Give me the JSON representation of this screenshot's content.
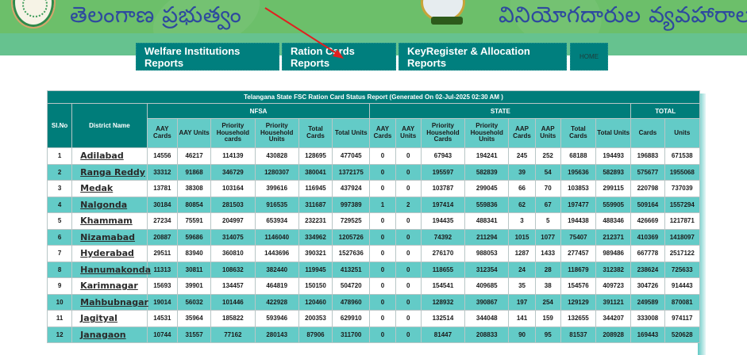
{
  "header": {
    "title_left": "తెలంగాణ ప్రభుత్వం",
    "title_right": "వినియోగదారుల వ్యవహారాలు",
    "logo_left": "telangana-emblem",
    "logo_right": "civil-supplies-emblem"
  },
  "nav": {
    "items": [
      {
        "label": "Welfare Institutions Reports"
      },
      {
        "label": "Ration Cards Reports"
      },
      {
        "label": "KeyRegister & Allocation Reports"
      },
      {
        "label": "HOME"
      }
    ]
  },
  "annotation": {
    "arrow_color": "#e02020"
  },
  "table": {
    "title": "Telangana State FSC Ration Card Status Report (Generated On 02-Jul-2025 02:30 AM )",
    "headers": {
      "slno": "Sl.No",
      "district": "District Name",
      "nfsa": "NFSA",
      "state": "STATE",
      "total": "TOTAL",
      "nfsa_cols": [
        "AAY Cards",
        "AAY Units",
        "Priority Household cards",
        "Priority Household Units",
        "Total Cards",
        "Total Units"
      ],
      "state_cols": [
        "AAY Cards",
        "AAY Units",
        "Priority Household Cards",
        "Priority Household Units",
        "AAP Cards",
        "AAP Units",
        "Total Cards",
        "Total Units"
      ],
      "total_cols": [
        "Cards",
        "Units"
      ]
    },
    "rows": [
      {
        "sl": "1",
        "district": "Adilabad",
        "v": [
          "14556",
          "46217",
          "114139",
          "430828",
          "128695",
          "477045",
          "0",
          "0",
          "67943",
          "194241",
          "245",
          "252",
          "68188",
          "194493",
          "196883",
          "671538"
        ]
      },
      {
        "sl": "2",
        "district": "Ranga Reddy",
        "v": [
          "33312",
          "91868",
          "346729",
          "1280307",
          "380041",
          "1372175",
          "0",
          "0",
          "195597",
          "582839",
          "39",
          "54",
          "195636",
          "582893",
          "575677",
          "1955068"
        ]
      },
      {
        "sl": "3",
        "district": "Medak",
        "v": [
          "13781",
          "38308",
          "103164",
          "399616",
          "116945",
          "437924",
          "0",
          "0",
          "103787",
          "299045",
          "66",
          "70",
          "103853",
          "299115",
          "220798",
          "737039"
        ]
      },
      {
        "sl": "4",
        "district": "Nalgonda",
        "v": [
          "30184",
          "80854",
          "281503",
          "916535",
          "311687",
          "997389",
          "1",
          "2",
          "197414",
          "559836",
          "62",
          "67",
          "197477",
          "559905",
          "509164",
          "1557294"
        ]
      },
      {
        "sl": "5",
        "district": "Khammam",
        "v": [
          "27234",
          "75591",
          "204997",
          "653934",
          "232231",
          "729525",
          "0",
          "0",
          "194435",
          "488341",
          "3",
          "5",
          "194438",
          "488346",
          "426669",
          "1217871"
        ]
      },
      {
        "sl": "6",
        "district": "Nizamabad",
        "v": [
          "20887",
          "59686",
          "314075",
          "1146040",
          "334962",
          "1205726",
          "0",
          "0",
          "74392",
          "211294",
          "1015",
          "1077",
          "75407",
          "212371",
          "410369",
          "1418097"
        ]
      },
      {
        "sl": "7",
        "district": "Hyderabad",
        "v": [
          "29511",
          "83940",
          "360810",
          "1443696",
          "390321",
          "1527636",
          "0",
          "0",
          "276170",
          "988053",
          "1287",
          "1433",
          "277457",
          "989486",
          "667778",
          "2517122"
        ]
      },
      {
        "sl": "8",
        "district": "Hanumakonda",
        "v": [
          "11313",
          "30811",
          "108632",
          "382440",
          "119945",
          "413251",
          "0",
          "0",
          "118655",
          "312354",
          "24",
          "28",
          "118679",
          "312382",
          "238624",
          "725633"
        ]
      },
      {
        "sl": "9",
        "district": "Karimnagar",
        "v": [
          "15693",
          "39901",
          "134457",
          "464819",
          "150150",
          "504720",
          "0",
          "0",
          "154541",
          "409685",
          "35",
          "38",
          "154576",
          "409723",
          "304726",
          "914443"
        ]
      },
      {
        "sl": "10",
        "district": "Mahbubnagar",
        "v": [
          "19014",
          "56032",
          "101446",
          "422928",
          "120460",
          "478960",
          "0",
          "0",
          "128932",
          "390867",
          "197",
          "254",
          "129129",
          "391121",
          "249589",
          "870081"
        ]
      },
      {
        "sl": "11",
        "district": "Jagityal",
        "v": [
          "14531",
          "35964",
          "185822",
          "593946",
          "200353",
          "629910",
          "0",
          "0",
          "132514",
          "344048",
          "141",
          "159",
          "132655",
          "344207",
          "333008",
          "974117"
        ]
      },
      {
        "sl": "12",
        "district": "Janagaon",
        "v": [
          "10744",
          "31557",
          "77162",
          "280143",
          "87906",
          "311700",
          "0",
          "0",
          "81447",
          "208833",
          "90",
          "95",
          "81537",
          "208928",
          "169443",
          "520628"
        ]
      }
    ]
  }
}
